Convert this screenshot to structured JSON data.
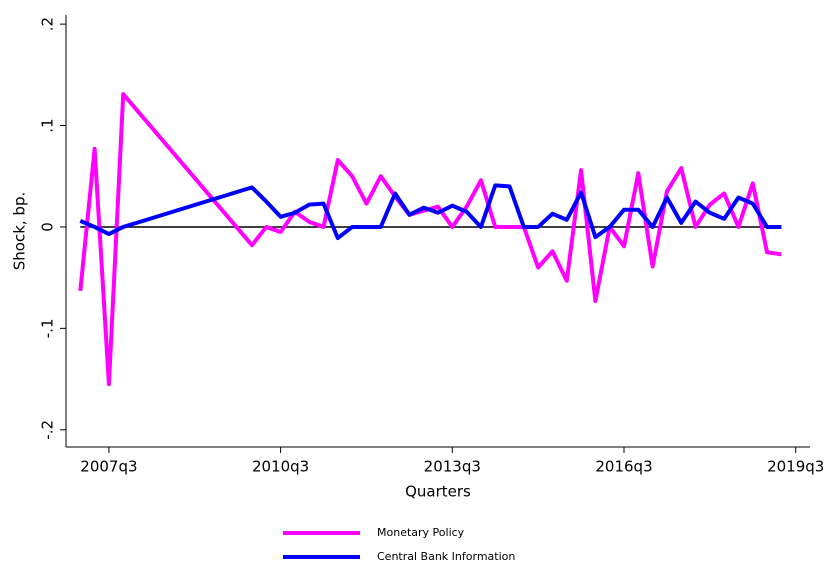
{
  "chart_data": {
    "type": "line",
    "x_label": "Quarters",
    "y_label": "Shock, bp.",
    "x": [
      "2007q1",
      "2007q2",
      "2007q3",
      "2007q4",
      "2010q1",
      "2010q2",
      "2010q3",
      "2010q4",
      "2011q1",
      "2011q2",
      "2011q3",
      "2011q4",
      "2012q1",
      "2012q2",
      "2012q3",
      "2012q4",
      "2013q1",
      "2013q2",
      "2013q3",
      "2013q4",
      "2014q1",
      "2014q2",
      "2014q3",
      "2014q4",
      "2015q1",
      "2015q2",
      "2015q3",
      "2015q4",
      "2016q1",
      "2016q2",
      "2016q3",
      "2016q4",
      "2017q1",
      "2017q2",
      "2017q3",
      "2017q4",
      "2018q1",
      "2018q2",
      "2018q3",
      "2018q4",
      "2019q1",
      "2019q2"
    ],
    "series": [
      {
        "name": "Monetary Policy",
        "color": "#ff00ff",
        "values": [
          -0.063,
          0.077,
          -0.155,
          0.131,
          -0.018,
          0,
          -0.005,
          0.015,
          0.005,
          0,
          0.066,
          0.05,
          0.023,
          0.05,
          0.03,
          0.012,
          0.016,
          0.02,
          0,
          0.02,
          0.046,
          0,
          0,
          0,
          -0.04,
          -0.024,
          -0.053,
          0.056,
          -0.073,
          0,
          -0.019,
          0.053,
          -0.039,
          0.035,
          0.058,
          0,
          0.022,
          0.033,
          0,
          0.043,
          -0.025,
          -0.027
        ]
      },
      {
        "name": "Central Bank Information",
        "color": "#0000ff",
        "values": [
          0.006,
          0,
          -0.007,
          0,
          0.039,
          0.025,
          0.01,
          0.014,
          0.022,
          0.023,
          -0.011,
          0,
          0,
          0,
          0.033,
          0.012,
          0.019,
          0.014,
          0.021,
          0.015,
          0,
          0.041,
          0.04,
          0,
          0,
          0.013,
          0.007,
          0.034,
          -0.01,
          0,
          0.017,
          0.017,
          0,
          0.029,
          0.004,
          0.025,
          0.014,
          0.008,
          0.029,
          0.023,
          0,
          0
        ]
      }
    ],
    "xlim": [
      "2006q4",
      "2019q4"
    ],
    "xticks": [
      "2007q3",
      "2010q3",
      "2013q3",
      "2016q3",
      "2019q3"
    ],
    "ylim": [
      -0.217,
      0.209
    ],
    "yticks": [
      {
        "value": -0.2,
        "label": "-.2"
      },
      {
        "value": -0.1,
        "label": "-.1"
      },
      0,
      {
        "value": 0.1,
        "label": ".1"
      },
      {
        "value": 0.2,
        "label": ".2"
      }
    ],
    "reference_line": 0,
    "grid": false,
    "legend": "bottom"
  }
}
